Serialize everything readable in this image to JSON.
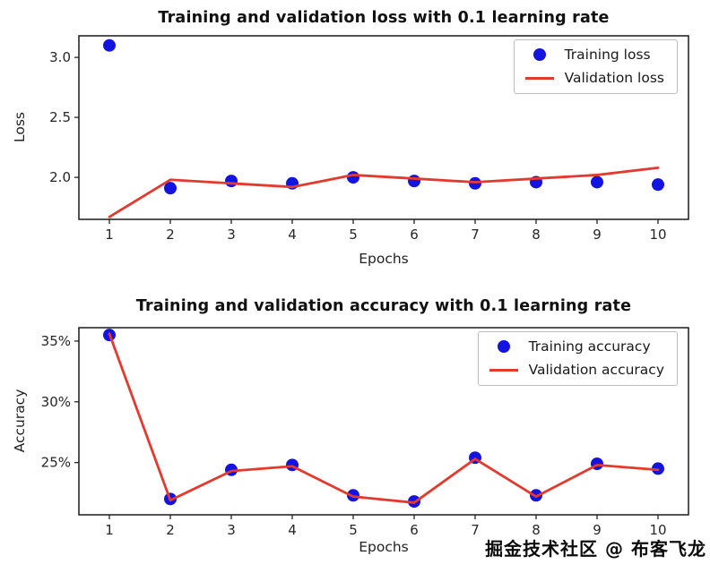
{
  "watermark": "掘金技术社区 @ 布客飞龙",
  "chart_data": [
    {
      "type": "line",
      "title": "Training and validation loss with 0.1 learning rate",
      "xlabel": "Epochs",
      "ylabel": "Loss",
      "x": [
        1,
        2,
        3,
        4,
        5,
        6,
        7,
        8,
        9,
        10
      ],
      "ylim": [
        1.65,
        3.18
      ],
      "yticks": [
        2.0,
        2.5,
        3.0
      ],
      "ytick_decimals": 1,
      "ytick_suffix": "",
      "grid": false,
      "legend_position": "upper right",
      "series": [
        {
          "name": "Training loss",
          "style": "scatter",
          "color": "#1414e0",
          "values": [
            3.1,
            1.91,
            1.97,
            1.95,
            2.0,
            1.97,
            1.95,
            1.96,
            1.96,
            1.94
          ]
        },
        {
          "name": "Validation loss",
          "style": "line",
          "color": "#e5392e",
          "values": [
            1.67,
            1.98,
            1.95,
            1.92,
            2.02,
            1.99,
            1.96,
            1.99,
            2.02,
            2.08
          ]
        }
      ]
    },
    {
      "type": "line",
      "title": "Training and validation accuracy with 0.1 learning rate",
      "xlabel": "Epochs",
      "ylabel": "Accuracy",
      "x": [
        1,
        2,
        3,
        4,
        5,
        6,
        7,
        8,
        9,
        10
      ],
      "ylim": [
        20.7,
        36.1
      ],
      "yticks": [
        25,
        30,
        35
      ],
      "ytick_decimals": 0,
      "ytick_suffix": "%",
      "grid": false,
      "legend_position": "upper right",
      "series": [
        {
          "name": "Training accuracy",
          "style": "scatter",
          "color": "#1414e0",
          "values": [
            35.5,
            22.0,
            24.4,
            24.8,
            22.3,
            21.8,
            25.4,
            22.3,
            24.9,
            24.5
          ]
        },
        {
          "name": "Validation accuracy",
          "style": "line",
          "color": "#e5392e",
          "values": [
            35.6,
            21.9,
            24.3,
            24.7,
            22.2,
            21.7,
            25.3,
            22.2,
            24.8,
            24.4
          ]
        }
      ]
    }
  ]
}
